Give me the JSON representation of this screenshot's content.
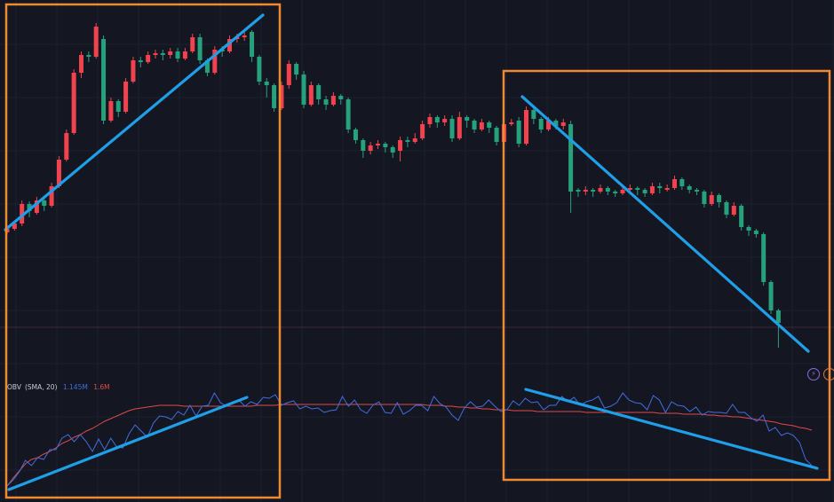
{
  "colors": {
    "background": "#141722",
    "grid": "#1c2030",
    "up": "#26a17b",
    "down": "#f0434e",
    "trendline": "#1f9fe8",
    "box": "#f08a30",
    "obv": "#3f6ee0",
    "obv_sma": "#e04848"
  },
  "indicator": {
    "name": "OBV",
    "params": "(SMA, 20)",
    "value": "1.145M",
    "sma_value": "1.6M"
  },
  "icons": {
    "bolt": "lightning-icon",
    "alert": "alert-icon",
    "bolt_glyph": "⚡",
    "alert_glyph": "!"
  },
  "chart_data": {
    "type": "candlestick",
    "price_candles": [
      [
        258,
        262,
        255,
        254,
        264
      ],
      [
        252,
        258,
        251,
        250,
        260
      ],
      [
        230,
        252,
        228,
        226,
        255
      ],
      [
        238,
        230,
        240,
        227,
        245
      ],
      [
        226,
        240,
        224,
        222,
        242
      ],
      [
        232,
        226,
        234,
        224,
        238
      ],
      [
        210,
        232,
        208,
        206,
        234
      ],
      [
        180,
        210,
        178,
        176,
        212
      ],
      [
        150,
        180,
        148,
        146,
        182
      ],
      [
        82,
        150,
        80,
        78,
        152
      ],
      [
        62,
        82,
        60,
        58,
        88
      ],
      [
        64,
        62,
        66,
        58,
        70
      ],
      [
        30,
        64,
        28,
        26,
        66
      ],
      [
        136,
        44,
        138,
        40,
        140
      ],
      [
        114,
        136,
        112,
        110,
        138
      ],
      [
        126,
        114,
        128,
        112,
        132
      ],
      [
        92,
        126,
        90,
        88,
        128
      ],
      [
        68,
        92,
        66,
        64,
        94
      ],
      [
        70,
        68,
        72,
        64,
        76
      ],
      [
        62,
        70,
        60,
        58,
        72
      ],
      [
        60,
        62,
        58,
        56,
        66
      ],
      [
        62,
        60,
        64,
        56,
        68
      ],
      [
        58,
        62,
        56,
        54,
        66
      ],
      [
        66,
        58,
        68,
        54,
        70
      ],
      [
        58,
        66,
        56,
        54,
        68
      ],
      [
        42,
        58,
        40,
        38,
        60
      ],
      [
        68,
        42,
        70,
        38,
        72
      ],
      [
        82,
        68,
        84,
        66,
        86
      ],
      [
        56,
        82,
        54,
        52,
        84
      ],
      [
        58,
        56,
        60,
        52,
        64
      ],
      [
        44,
        58,
        42,
        40,
        60
      ],
      [
        42,
        44,
        40,
        38,
        48
      ],
      [
        40,
        42,
        38,
        36,
        46
      ],
      [
        64,
        36,
        66,
        34,
        70
      ],
      [
        92,
        64,
        94,
        62,
        96
      ],
      [
        96,
        92,
        98,
        88,
        110
      ],
      [
        122,
        96,
        124,
        94,
        126
      ],
      [
        96,
        122,
        94,
        92,
        124
      ],
      [
        72,
        96,
        70,
        68,
        100
      ],
      [
        84,
        72,
        86,
        70,
        90
      ],
      [
        118,
        84,
        120,
        80,
        122
      ],
      [
        96,
        118,
        94,
        92,
        120
      ],
      [
        112,
        96,
        114,
        94,
        118
      ],
      [
        118,
        112,
        120,
        108,
        124
      ],
      [
        108,
        118,
        106,
        104,
        120
      ],
      [
        112,
        108,
        114,
        106,
        118
      ],
      [
        146,
        112,
        148,
        110,
        150
      ],
      [
        158,
        146,
        160,
        144,
        162
      ],
      [
        170,
        158,
        172,
        156,
        178
      ],
      [
        164,
        170,
        162,
        160,
        174
      ],
      [
        162,
        164,
        160,
        158,
        168
      ],
      [
        166,
        162,
        168,
        160,
        172
      ],
      [
        172,
        166,
        174,
        164,
        178
      ],
      [
        158,
        170,
        156,
        154,
        182
      ],
      [
        160,
        158,
        162,
        154,
        166
      ],
      [
        156,
        160,
        154,
        150,
        162
      ],
      [
        140,
        156,
        138,
        136,
        158
      ],
      [
        132,
        140,
        130,
        128,
        144
      ],
      [
        138,
        132,
        140,
        130,
        144
      ],
      [
        134,
        138,
        132,
        130,
        142
      ],
      [
        156,
        134,
        158,
        130,
        160
      ],
      [
        132,
        156,
        130,
        126,
        158
      ],
      [
        136,
        132,
        138,
        130,
        144
      ],
      [
        146,
        136,
        148,
        134,
        150
      ],
      [
        138,
        146,
        136,
        134,
        148
      ],
      [
        144,
        138,
        146,
        136,
        150
      ],
      [
        160,
        144,
        162,
        142,
        164
      ],
      [
        140,
        160,
        138,
        136,
        162
      ],
      [
        138,
        140,
        136,
        134,
        142
      ],
      [
        162,
        136,
        164,
        132,
        166
      ],
      [
        124,
        162,
        122,
        120,
        164
      ],
      [
        134,
        124,
        136,
        122,
        140
      ],
      [
        146,
        134,
        148,
        132,
        150
      ],
      [
        136,
        146,
        134,
        132,
        148
      ],
      [
        142,
        136,
        144,
        134,
        146
      ],
      [
        138,
        142,
        136,
        134,
        146
      ],
      [
        216,
        140,
        218,
        136,
        240
      ],
      [
        216,
        214,
        218,
        212,
        222
      ],
      [
        214,
        216,
        212,
        210,
        220
      ],
      [
        216,
        214,
        218,
        212,
        222
      ],
      [
        212,
        216,
        210,
        208,
        218
      ],
      [
        216,
        212,
        218,
        210,
        220
      ],
      [
        218,
        216,
        220,
        214,
        222
      ],
      [
        214,
        218,
        212,
        210,
        220
      ],
      [
        212,
        214,
        210,
        208,
        216
      ],
      [
        214,
        212,
        216,
        210,
        220
      ],
      [
        218,
        214,
        220,
        212,
        222
      ],
      [
        210,
        218,
        208,
        206,
        220
      ],
      [
        212,
        210,
        214,
        206,
        218
      ],
      [
        212,
        212,
        208,
        208,
        216
      ],
      [
        202,
        212,
        200,
        198,
        214
      ],
      [
        210,
        202,
        212,
        200,
        214
      ],
      [
        214,
        210,
        216,
        208,
        218
      ],
      [
        216,
        214,
        218,
        212,
        220
      ],
      [
        230,
        216,
        232,
        214,
        234
      ],
      [
        220,
        230,
        218,
        216,
        232
      ],
      [
        228,
        220,
        230,
        218,
        234
      ],
      [
        242,
        228,
        244,
        226,
        246
      ],
      [
        232,
        242,
        230,
        228,
        244
      ],
      [
        256,
        232,
        258,
        230,
        260
      ],
      [
        260,
        256,
        262,
        254,
        266
      ],
      [
        264,
        260,
        266,
        258,
        268
      ],
      [
        318,
        264,
        320,
        262,
        322
      ],
      [
        350,
        318,
        352,
        316,
        354
      ],
      [
        364,
        350,
        366,
        348,
        392
      ]
    ],
    "obv_series": [
      548,
      541,
      532,
      519,
      525,
      516,
      518,
      507,
      507,
      494,
      490,
      498,
      490,
      498,
      509,
      495,
      507,
      494,
      504,
      505,
      489,
      479,
      486,
      493,
      477,
      469,
      470,
      473,
      464,
      468,
      457,
      469,
      458,
      457,
      443,
      454,
      458,
      453,
      451,
      458,
      453,
      456,
      448,
      449,
      445,
      457,
      454,
      452,
      461,
      458,
      461,
      460,
      465,
      463,
      462,
      447,
      458,
      451,
      462,
      466,
      457,
      453,
      465,
      466,
      454,
      467,
      463,
      457,
      457,
      463,
      447,
      455,
      459,
      468,
      474,
      460,
      453,
      459,
      458,
      451,
      458,
      464,
      462,
      452,
      457,
      449,
      454,
      453,
      462,
      457,
      457,
      447,
      453,
      448,
      457,
      453,
      451,
      447,
      460,
      458,
      454,
      443,
      451,
      454,
      455,
      462,
      446,
      451,
      465,
      453,
      457,
      458,
      464,
      459,
      468,
      464,
      465,
      465,
      466,
      456,
      465,
      465,
      471,
      475,
      468,
      486,
      482,
      491,
      488,
      491,
      499,
      518,
      525
    ],
    "sma_series": [
      548,
      539,
      531,
      523,
      518,
      516,
      512,
      509,
      505,
      500,
      497,
      493,
      490,
      486,
      483,
      479,
      475,
      472,
      469,
      466,
      463,
      461,
      460,
      459,
      458,
      457,
      457,
      457,
      457,
      458,
      458,
      458,
      458,
      458,
      458,
      458,
      458,
      458,
      458,
      458,
      458,
      457,
      457,
      457,
      457,
      456,
      456,
      456,
      456,
      456,
      456,
      456,
      456,
      456,
      456,
      456,
      456,
      456,
      456,
      456,
      456,
      456,
      456,
      456,
      456,
      456,
      456,
      456,
      456,
      457,
      457,
      457,
      458,
      458,
      459,
      459,
      460,
      460,
      461,
      461,
      462,
      462,
      462,
      463,
      463,
      463,
      463,
      464,
      464,
      464,
      464,
      464,
      464,
      464,
      464,
      465,
      465,
      465,
      465,
      465,
      465,
      465,
      465,
      465,
      465,
      465,
      465,
      466,
      466,
      466,
      466,
      467,
      467,
      467,
      467,
      468,
      468,
      469,
      469,
      470,
      470,
      471,
      472,
      473,
      474,
      475,
      476,
      478,
      479,
      480,
      482,
      483,
      485
    ]
  }
}
